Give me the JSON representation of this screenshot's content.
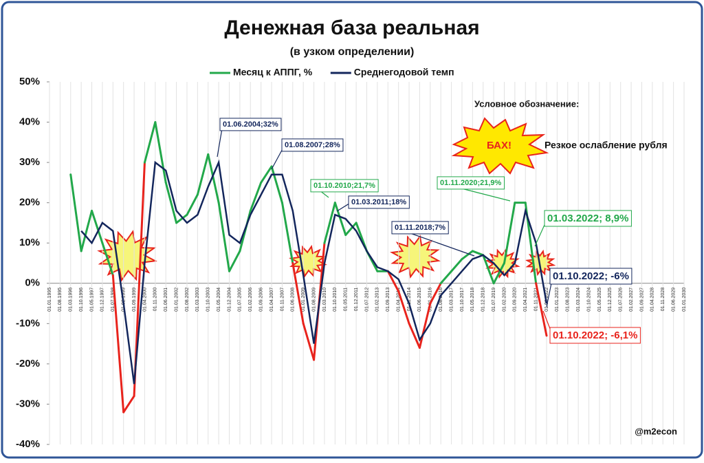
{
  "chart_data": {
    "type": "line",
    "title": "Денежная база реальная",
    "subtitle": "(в узком определении)",
    "categories": [
      "01.01.1995",
      "01.08.1995",
      "01.03.1996",
      "01.10.1996",
      "01.05.1997",
      "01.12.1997",
      "01.07.1998",
      "01.02.1999",
      "01.09.1999",
      "01.04.2000",
      "01.11.2000",
      "01.06.2001",
      "01.01.2002",
      "01.08.2002",
      "01.03.2003",
      "01.10.2003",
      "01.05.2004",
      "01.12.2004",
      "01.07.2005",
      "01.02.2006",
      "01.09.2006",
      "01.04.2007",
      "01.11.2007",
      "01.06.2008",
      "01.01.2009",
      "01.08.2009",
      "01.03.2010",
      "01.10.2010",
      "01.05.2011",
      "01.12.2011",
      "01.07.2012",
      "01.02.2013",
      "01.09.2013",
      "01.04.2014",
      "01.11.2014",
      "01.06.2015",
      "01.01.2016",
      "01.08.2016",
      "01.03.2017",
      "01.10.2017",
      "01.05.2018",
      "01.12.2018",
      "01.07.2019",
      "01.02.2020",
      "01.09.2020",
      "01.04.2021",
      "01.11.2021",
      "01.06.2022",
      "01.01.2023",
      "01.08.2023",
      "01.03.2024",
      "01.10.2024",
      "01.05.2025",
      "01.12.2025",
      "01.07.2026",
      "01.02.2027",
      "01.09.2027",
      "01.04.2028",
      "01.11.2028",
      "01.06.2029",
      "01.01.2030"
    ],
    "series": [
      {
        "name": "Месяц к АППГ, %",
        "color": "#22a84a",
        "negative_color": "#e8231c",
        "values": [
          null,
          null,
          27,
          8,
          18,
          10,
          2,
          -32,
          -28,
          30,
          40,
          25,
          15,
          17,
          22,
          32,
          20,
          3,
          8,
          18,
          25,
          29,
          20,
          5,
          -10,
          -19,
          10,
          20,
          12,
          15,
          8,
          3,
          3,
          -2,
          -10,
          -16,
          -5,
          0,
          3,
          6,
          8,
          7,
          0,
          5,
          20,
          20,
          0,
          -13,
          null,
          null,
          null,
          null,
          null,
          null,
          null,
          null,
          null,
          null,
          null,
          null,
          null
        ]
      },
      {
        "name": "Среднегодовой темп",
        "color": "#13265c",
        "values": [
          null,
          null,
          null,
          13,
          10,
          15,
          13,
          -5,
          -25,
          5,
          30,
          28,
          18,
          15,
          17,
          24,
          30,
          12,
          10,
          17,
          22,
          27,
          27,
          18,
          2,
          -15,
          5,
          17,
          16,
          13,
          8,
          4,
          3,
          1,
          -5,
          -14,
          -10,
          -3,
          0,
          3,
          6,
          7,
          5,
          2,
          5,
          18,
          10,
          -5,
          null,
          null,
          null,
          null,
          null,
          null,
          null,
          null,
          null,
          null,
          null,
          null,
          null
        ]
      }
    ],
    "ylim": [
      -40,
      50
    ],
    "yticks": [
      {
        "value": -40,
        "label": "-40%"
      },
      {
        "value": -30,
        "label": "-30%"
      },
      {
        "value": -20,
        "label": "-20%"
      },
      {
        "value": -10,
        "label": "-10%"
      },
      {
        "value": 0,
        "label": "0%"
      },
      {
        "value": 10,
        "label": "10%"
      },
      {
        "value": 20,
        "label": "20%"
      },
      {
        "value": 30,
        "label": "30%"
      },
      {
        "value": 40,
        "label": "40%"
      },
      {
        "value": 50,
        "label": "50%"
      }
    ],
    "grid": true,
    "legend": "top",
    "annotations": [
      {
        "text": "01.06.2004;32%",
        "color": "#13265c"
      },
      {
        "text": "01.08.2007;28%",
        "color": "#13265c"
      },
      {
        "text": "01.10.2010;21,7%",
        "color": "#22a84a"
      },
      {
        "text": "01.03.2011;18%",
        "color": "#13265c"
      },
      {
        "text": "01.11.2018;7%",
        "color": "#13265c"
      },
      {
        "text": "01.11.2020;21,9%",
        "color": "#22a84a"
      },
      {
        "text": "01.03.2022; 8,9%",
        "color": "#22a84a"
      },
      {
        "text": "01.10.2022; -6%",
        "color": "#13265c"
      },
      {
        "text": "01.10.2022; -6,1%",
        "color": "#e8231c"
      }
    ],
    "key_title": "Условное обозначение:",
    "key_badge": "БАХ!",
    "key_text": "Резкое ослабление рубля",
    "credit": "@m2econ"
  }
}
